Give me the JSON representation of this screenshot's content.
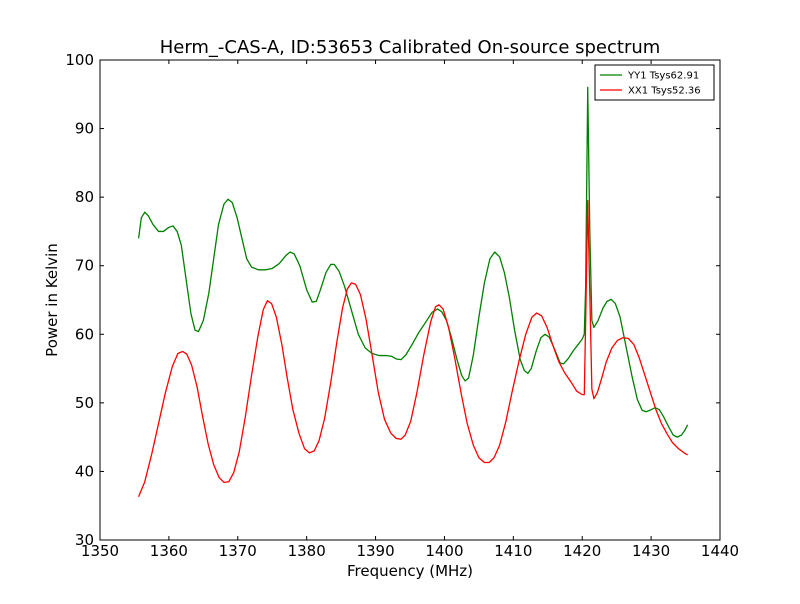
{
  "chart_data": {
    "type": "line",
    "title": "Herm_-CAS-A, ID:53653 Calibrated On-source spectrum",
    "xlabel": "Frequency (MHz)",
    "ylabel": "Power in Kelvin",
    "xlim": [
      1350,
      1440
    ],
    "ylim": [
      30,
      100
    ],
    "xticks": [
      1350,
      1360,
      1370,
      1380,
      1390,
      1400,
      1410,
      1420,
      1430,
      1440
    ],
    "yticks": [
      30,
      40,
      50,
      60,
      70,
      80,
      90,
      100
    ],
    "grid": false,
    "legend_position": "top-right",
    "series": [
      {
        "name": "YY1 Tsys62.91",
        "color": "#008000",
        "points": [
          [
            1355.6,
            74
          ],
          [
            1356,
            77
          ],
          [
            1356.5,
            77.8
          ],
          [
            1357,
            77.3
          ],
          [
            1357.7,
            76
          ],
          [
            1358.5,
            75
          ],
          [
            1359.2,
            75
          ],
          [
            1360,
            75.6
          ],
          [
            1360.6,
            75.8
          ],
          [
            1361.2,
            75
          ],
          [
            1361.8,
            73
          ],
          [
            1362.5,
            68
          ],
          [
            1363.2,
            63
          ],
          [
            1363.8,
            60.6
          ],
          [
            1364.3,
            60.4
          ],
          [
            1365,
            62
          ],
          [
            1365.8,
            66
          ],
          [
            1366.5,
            71
          ],
          [
            1367.2,
            76
          ],
          [
            1368,
            79
          ],
          [
            1368.6,
            79.7
          ],
          [
            1369.2,
            79.2
          ],
          [
            1369.9,
            77
          ],
          [
            1370.6,
            74
          ],
          [
            1371.3,
            71
          ],
          [
            1372,
            69.8
          ],
          [
            1373,
            69.4
          ],
          [
            1374,
            69.4
          ],
          [
            1375,
            69.6
          ],
          [
            1376,
            70.3
          ],
          [
            1377,
            71.5
          ],
          [
            1377.6,
            72
          ],
          [
            1378.2,
            71.7
          ],
          [
            1379,
            70
          ],
          [
            1380,
            66.5
          ],
          [
            1380.8,
            64.7
          ],
          [
            1381.4,
            64.8
          ],
          [
            1382,
            66.5
          ],
          [
            1382.8,
            69
          ],
          [
            1383.5,
            70.2
          ],
          [
            1384,
            70.2
          ],
          [
            1384.7,
            69.2
          ],
          [
            1385.5,
            67
          ],
          [
            1386.5,
            63.5
          ],
          [
            1387.5,
            60
          ],
          [
            1388.5,
            58
          ],
          [
            1389.5,
            57.2
          ],
          [
            1390.5,
            56.9
          ],
          [
            1391.5,
            56.9
          ],
          [
            1392.3,
            56.8
          ],
          [
            1393,
            56.4
          ],
          [
            1393.7,
            56.3
          ],
          [
            1394.4,
            57
          ],
          [
            1395.3,
            58.5
          ],
          [
            1396.3,
            60.3
          ],
          [
            1397.3,
            61.8
          ],
          [
            1398.2,
            63.2
          ],
          [
            1399,
            63.7
          ],
          [
            1399.6,
            63.3
          ],
          [
            1400.3,
            62
          ],
          [
            1401,
            59.6
          ],
          [
            1401.8,
            56.4
          ],
          [
            1402.5,
            54
          ],
          [
            1403,
            53.2
          ],
          [
            1403.5,
            53.6
          ],
          [
            1404.2,
            57
          ],
          [
            1405,
            62.5
          ],
          [
            1405.8,
            67.5
          ],
          [
            1406.6,
            71
          ],
          [
            1407.3,
            72
          ],
          [
            1408,
            71.3
          ],
          [
            1408.7,
            69
          ],
          [
            1409.4,
            65.5
          ],
          [
            1410.2,
            60.5
          ],
          [
            1411,
            56.3
          ],
          [
            1411.6,
            54.7
          ],
          [
            1412.1,
            54.3
          ],
          [
            1412.6,
            55
          ],
          [
            1413.3,
            57.5
          ],
          [
            1414,
            59.5
          ],
          [
            1414.6,
            60
          ],
          [
            1415.2,
            59.6
          ],
          [
            1416,
            57.8
          ],
          [
            1416.8,
            55.8
          ],
          [
            1417.3,
            55.7
          ],
          [
            1418,
            56.5
          ],
          [
            1418.7,
            57.6
          ],
          [
            1419.4,
            58.5
          ],
          [
            1420,
            59.3
          ],
          [
            1420.3,
            60
          ],
          [
            1420.5,
            67
          ],
          [
            1420.8,
            96
          ],
          [
            1421.1,
            75
          ],
          [
            1421.4,
            62
          ],
          [
            1421.7,
            61
          ],
          [
            1422.3,
            62
          ],
          [
            1423,
            63.8
          ],
          [
            1423.6,
            64.8
          ],
          [
            1424.2,
            65.1
          ],
          [
            1424.8,
            64.5
          ],
          [
            1425.5,
            62.5
          ],
          [
            1426.3,
            58.5
          ],
          [
            1427.2,
            54
          ],
          [
            1428,
            50.5
          ],
          [
            1428.7,
            48.9
          ],
          [
            1429.3,
            48.7
          ],
          [
            1430,
            49
          ],
          [
            1430.6,
            49.3
          ],
          [
            1431.2,
            49
          ],
          [
            1431.8,
            48
          ],
          [
            1432.5,
            46.6
          ],
          [
            1433.2,
            45.3
          ],
          [
            1433.8,
            45
          ],
          [
            1434.4,
            45.3
          ],
          [
            1434.9,
            46
          ],
          [
            1435.3,
            46.8
          ]
        ]
      },
      {
        "name": "XX1 Tsys52.36",
        "color": "#ff0000",
        "points": [
          [
            1355.6,
            36.3
          ],
          [
            1356.5,
            38.5
          ],
          [
            1357.5,
            42.5
          ],
          [
            1358.5,
            47
          ],
          [
            1359.5,
            51.5
          ],
          [
            1360.5,
            55.3
          ],
          [
            1361.3,
            57.2
          ],
          [
            1362,
            57.5
          ],
          [
            1362.6,
            57.1
          ],
          [
            1363.3,
            55.5
          ],
          [
            1364.1,
            52.3
          ],
          [
            1364.9,
            48
          ],
          [
            1365.7,
            44
          ],
          [
            1366.5,
            41
          ],
          [
            1367.3,
            39.1
          ],
          [
            1368,
            38.4
          ],
          [
            1368.7,
            38.5
          ],
          [
            1369.4,
            39.8
          ],
          [
            1370.2,
            42.8
          ],
          [
            1371.1,
            48
          ],
          [
            1372,
            54
          ],
          [
            1372.9,
            59.6
          ],
          [
            1373.7,
            63.6
          ],
          [
            1374.3,
            64.9
          ],
          [
            1374.9,
            64.5
          ],
          [
            1375.6,
            62.5
          ],
          [
            1376.4,
            58.5
          ],
          [
            1377.2,
            53.5
          ],
          [
            1378,
            49
          ],
          [
            1378.9,
            45.5
          ],
          [
            1379.7,
            43.3
          ],
          [
            1380.4,
            42.7
          ],
          [
            1381.1,
            43
          ],
          [
            1381.8,
            44.5
          ],
          [
            1382.6,
            47.7
          ],
          [
            1383.5,
            53
          ],
          [
            1384.4,
            59
          ],
          [
            1385.2,
            63.8
          ],
          [
            1385.9,
            66.6
          ],
          [
            1386.5,
            67.5
          ],
          [
            1387.1,
            67.3
          ],
          [
            1387.8,
            65.8
          ],
          [
            1388.6,
            62.3
          ],
          [
            1389.5,
            57
          ],
          [
            1390.4,
            51.5
          ],
          [
            1391.3,
            47.6
          ],
          [
            1392.2,
            45.6
          ],
          [
            1393,
            44.8
          ],
          [
            1393.7,
            44.7
          ],
          [
            1394.3,
            45.3
          ],
          [
            1395.1,
            47.3
          ],
          [
            1396,
            51.5
          ],
          [
            1397,
            57
          ],
          [
            1398,
            61.8
          ],
          [
            1398.7,
            64
          ],
          [
            1399.2,
            64.3
          ],
          [
            1399.8,
            63.7
          ],
          [
            1400.6,
            61
          ],
          [
            1401.5,
            56.5
          ],
          [
            1402.4,
            51.5
          ],
          [
            1403.3,
            47
          ],
          [
            1404.2,
            43.8
          ],
          [
            1405,
            42
          ],
          [
            1405.8,
            41.3
          ],
          [
            1406.5,
            41.3
          ],
          [
            1407.2,
            42
          ],
          [
            1408,
            43.8
          ],
          [
            1408.9,
            47.2
          ],
          [
            1409.8,
            51.5
          ],
          [
            1410.8,
            56
          ],
          [
            1411.8,
            60
          ],
          [
            1412.7,
            62.5
          ],
          [
            1413.4,
            63.1
          ],
          [
            1414.1,
            62.7
          ],
          [
            1414.9,
            61
          ],
          [
            1415.7,
            58.5
          ],
          [
            1416.6,
            56
          ],
          [
            1417.5,
            54.3
          ],
          [
            1418.4,
            53
          ],
          [
            1419.2,
            51.7
          ],
          [
            1420,
            51.2
          ],
          [
            1420.3,
            51.2
          ],
          [
            1420.5,
            62
          ],
          [
            1420.8,
            79.5
          ],
          [
            1421.1,
            66
          ],
          [
            1421.4,
            52
          ],
          [
            1421.7,
            50.6
          ],
          [
            1422.2,
            51.5
          ],
          [
            1422.8,
            53.5
          ],
          [
            1423.5,
            56
          ],
          [
            1424.3,
            58
          ],
          [
            1425.1,
            59.1
          ],
          [
            1425.9,
            59.5
          ],
          [
            1426.7,
            59.4
          ],
          [
            1427.5,
            58.5
          ],
          [
            1428.3,
            56.5
          ],
          [
            1429.1,
            54
          ],
          [
            1429.9,
            51.5
          ],
          [
            1430.7,
            49
          ],
          [
            1431.5,
            47
          ],
          [
            1432.3,
            45.5
          ],
          [
            1433.1,
            44.2
          ],
          [
            1434,
            43.3
          ],
          [
            1434.8,
            42.7
          ],
          [
            1435.3,
            42.4
          ]
        ]
      }
    ]
  }
}
